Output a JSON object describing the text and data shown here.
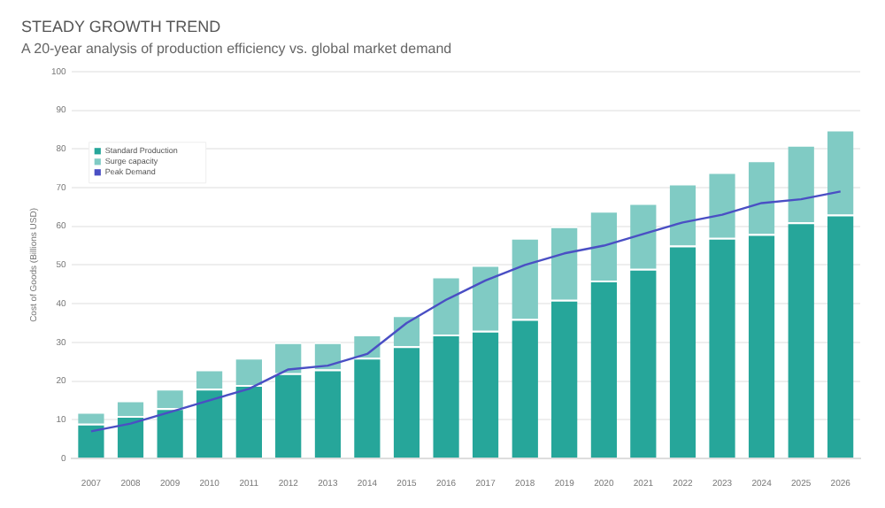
{
  "chart_data": {
    "type": "bar",
    "title": "STEADY GROWTH TREND",
    "subtitle": "A 20-year analysis of production efficiency vs. global market demand",
    "ylabel": "Cost of Goods (Billions USD)",
    "categories": [
      "2007",
      "2008",
      "2009",
      "2010",
      "2011",
      "2012",
      "2013",
      "2014",
      "2015",
      "2016",
      "2017",
      "2018",
      "2019",
      "2020",
      "2021",
      "2022",
      "2023",
      "2024",
      "2025",
      "2026"
    ],
    "stacked": true,
    "ylim": [
      0,
      100
    ],
    "yticks": [
      0,
      10,
      20,
      30,
      40,
      50,
      60,
      70,
      80,
      90,
      100
    ],
    "grid": "y",
    "legend": "top left",
    "series": [
      {
        "name": "Standard Production",
        "color": "#26a69a",
        "values": [
          9,
          11,
          13,
          18,
          19,
          22,
          23,
          26,
          29,
          32,
          33,
          36,
          41,
          46,
          49,
          55,
          57,
          58,
          61,
          63
        ]
      },
      {
        "name": "Surge capacity",
        "color": "#80cbc4",
        "values": [
          3,
          4,
          5,
          5,
          7,
          8,
          7,
          6,
          8,
          15,
          17,
          21,
          19,
          18,
          17,
          16,
          17,
          19,
          20,
          22
        ]
      },
      {
        "name": "Peak Demand",
        "type": "line",
        "color": "#4a4fc4",
        "marker": "none",
        "values": [
          7,
          9,
          12,
          15,
          18,
          23,
          24,
          27,
          35,
          41,
          46,
          50,
          53,
          55,
          58,
          61,
          63,
          66,
          67,
          69
        ]
      }
    ]
  }
}
